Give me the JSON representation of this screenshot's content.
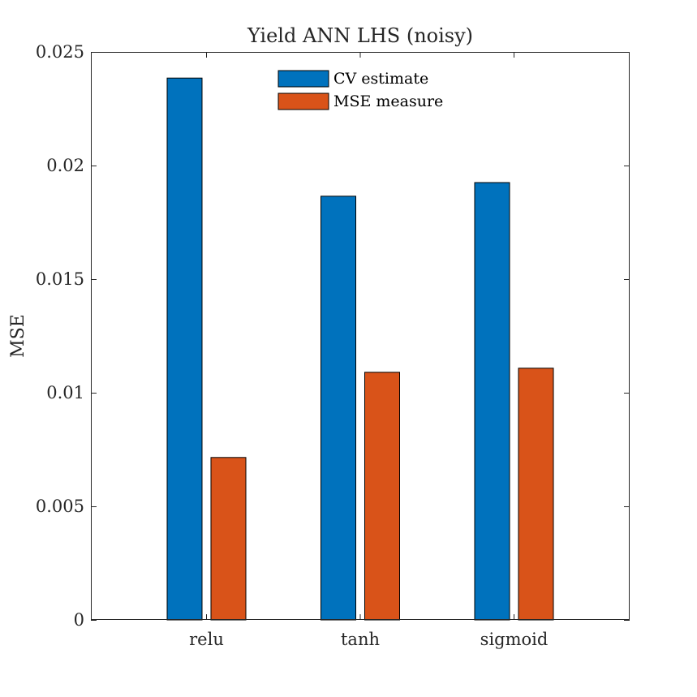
{
  "chart_data": {
    "type": "bar",
    "title": "Yield ANN LHS (noisy)",
    "xlabel": "",
    "ylabel": "MSE",
    "categories": [
      "relu",
      "tanh",
      "sigmoid"
    ],
    "series": [
      {
        "name": "CV estimate",
        "color": "#0072BD",
        "values": [
          0.02385,
          0.01865,
          0.01925
        ]
      },
      {
        "name": "MSE measure",
        "color": "#D95319",
        "values": [
          0.00715,
          0.0109,
          0.01108
        ]
      }
    ],
    "ylim": [
      0,
      0.025
    ],
    "yticks": [
      0,
      0.005,
      0.01,
      0.015,
      0.02,
      0.025
    ],
    "ytick_labels": [
      "0",
      "0.005",
      "0.01",
      "0.015",
      "0.02",
      "0.025"
    ],
    "grid": false,
    "legend": "top-center"
  }
}
